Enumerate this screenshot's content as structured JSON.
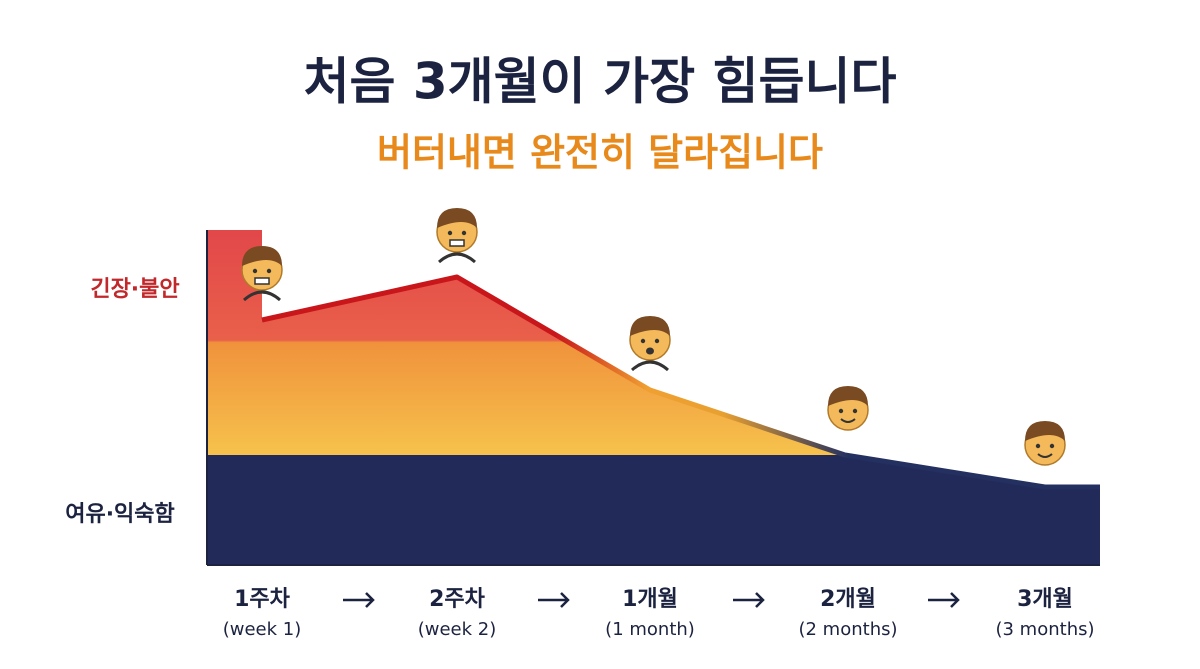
{
  "header": {
    "title": "처음 3개월이 가장 힘듭니다",
    "subtitle": "버터내면 완전히 달라집니다"
  },
  "levels": {
    "high": "긴장·불안",
    "low": "여유·익숙함"
  },
  "stages": [
    {
      "label": "1주차",
      "sub": "(week 1)"
    },
    {
      "label": "2주차",
      "sub": "(week 2)"
    },
    {
      "label": "1개월",
      "sub": "(1 month)"
    },
    {
      "label": "2개월",
      "sub": "(2 months)"
    },
    {
      "label": "3개월",
      "sub": "(3 months)"
    }
  ]
}
